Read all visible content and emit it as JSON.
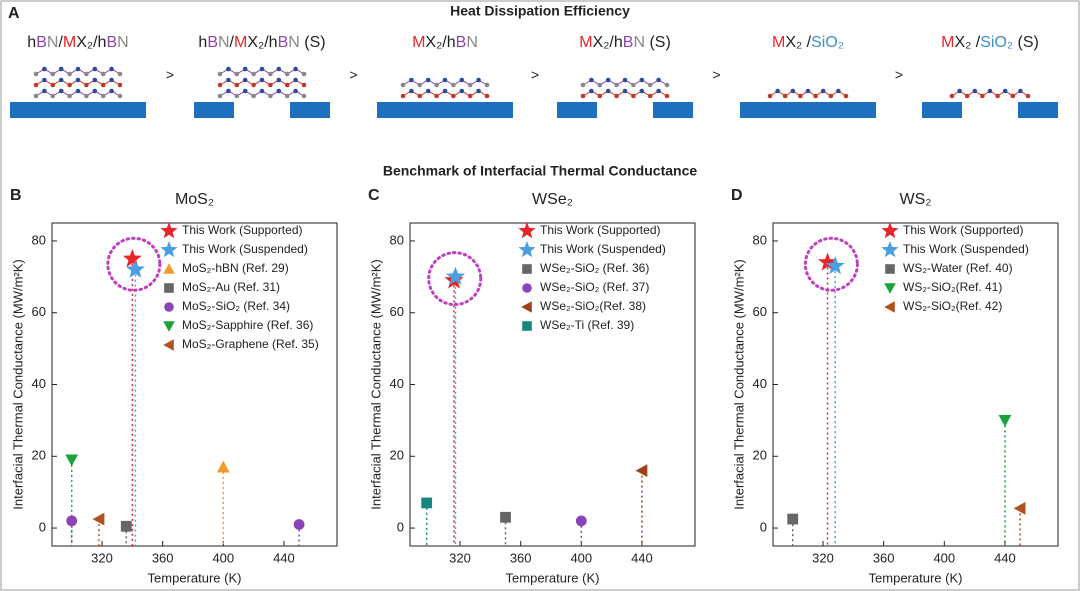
{
  "panel_a": {
    "letter": "A",
    "title": "Heat Dissipation Efficiency",
    "separator": ">",
    "structures": [
      {
        "label": [
          {
            "t": "h",
            "c": "#222"
          },
          {
            "t": "B",
            "c": "#8e44ad"
          },
          {
            "t": "N",
            "c": "#888"
          },
          {
            "t": "/",
            "c": "#222"
          },
          {
            "t": "M",
            "c": "#e8262a"
          },
          {
            "t": "X₂/h",
            "c": "#222"
          },
          {
            "t": "B",
            "c": "#8e44ad"
          },
          {
            "t": "N",
            "c": "#888"
          }
        ]
      },
      {
        "label": [
          {
            "t": "h",
            "c": "#222"
          },
          {
            "t": "B",
            "c": "#8e44ad"
          },
          {
            "t": "N",
            "c": "#888"
          },
          {
            "t": "/",
            "c": "#222"
          },
          {
            "t": "M",
            "c": "#e8262a"
          },
          {
            "t": "X₂/h",
            "c": "#222"
          },
          {
            "t": "B",
            "c": "#8e44ad"
          },
          {
            "t": "N",
            "c": "#888"
          },
          {
            "t": " (S)",
            "c": "#222"
          }
        ]
      },
      {
        "label": [
          {
            "t": "M",
            "c": "#e8262a"
          },
          {
            "t": "X₂/h",
            "c": "#222"
          },
          {
            "t": "B",
            "c": "#8e44ad"
          },
          {
            "t": "N",
            "c": "#888"
          }
        ]
      },
      {
        "label": [
          {
            "t": "M",
            "c": "#e8262a"
          },
          {
            "t": "X₂/h",
            "c": "#222"
          },
          {
            "t": "B",
            "c": "#8e44ad"
          },
          {
            "t": "N",
            "c": "#888"
          },
          {
            "t": " (S)",
            "c": "#222"
          }
        ]
      },
      {
        "label": [
          {
            "t": "M",
            "c": "#e8262a"
          },
          {
            "t": "X₂ /",
            "c": "#222"
          },
          {
            "t": "SiO₂",
            "c": "#3a8fd0"
          }
        ]
      },
      {
        "label": [
          {
            "t": "M",
            "c": "#e8262a"
          },
          {
            "t": "X₂ /",
            "c": "#222"
          },
          {
            "t": "SiO₂",
            "c": "#3a8fd0"
          },
          {
            "t": " (S)",
            "c": "#222"
          }
        ]
      }
    ]
  },
  "benchmark_title": "Benchmark of Interfacial Thermal Conductance",
  "chart_data": [
    {
      "type": "scatter",
      "letter": "B",
      "title": "MoS₂",
      "x_label": "Temperature (K)",
      "y_label": "Interfacial Thermal Conductance (MW/m²K)",
      "xlim": [
        287,
        475
      ],
      "xticks": [
        320,
        360,
        400,
        440
      ],
      "ylim": [
        -5,
        85
      ],
      "yticks": [
        0,
        20,
        40,
        60,
        80
      ],
      "series": [
        {
          "name": "This Work (Supported)",
          "color": "#e8262a",
          "marker": "star",
          "x": [
            340
          ],
          "values": [
            75
          ]
        },
        {
          "name": "This Work (Suspended)",
          "color": "#4a9fe0",
          "marker": "star",
          "x": [
            342
          ],
          "values": [
            72
          ]
        },
        {
          "name": "MoS₂-hBN (Ref. 29)",
          "color": "#f39a2b",
          "marker": "triangle-up",
          "x": [
            400
          ],
          "values": [
            17
          ]
        },
        {
          "name": "MoS₂-Au (Ref. 31)",
          "color": "#666666",
          "marker": "square",
          "x": [
            336
          ],
          "values": [
            0.5
          ]
        },
        {
          "name": "MoS₂-SiO₂ (Ref. 34)",
          "color": "#8a44b8",
          "marker": "circle",
          "x": [
            300,
            450
          ],
          "values": [
            2,
            1
          ]
        },
        {
          "name": "MoS₂-Sapphire (Ref. 36)",
          "color": "#1aa33c",
          "marker": "triangle-down",
          "x": [
            300
          ],
          "values": [
            19
          ]
        },
        {
          "name": "MoS₂-Graphene (Ref. 35)",
          "color": "#b0521f",
          "marker": "triangle-left",
          "x": [
            318
          ],
          "values": [
            2.5
          ]
        }
      ]
    },
    {
      "type": "scatter",
      "letter": "C",
      "title": "WSe₂",
      "x_label": "Temperature (K)",
      "y_label": "Interfacial Thermal Conductance (MW/m²K)",
      "xlim": [
        287,
        475
      ],
      "xticks": [
        320,
        360,
        400,
        440
      ],
      "ylim": [
        -5,
        85
      ],
      "yticks": [
        0,
        20,
        40,
        60,
        80
      ],
      "series": [
        {
          "name": "This Work (Supported)",
          "color": "#e8262a",
          "marker": "star",
          "x": [
            316
          ],
          "values": [
            69
          ]
        },
        {
          "name": "This Work (Suspended)",
          "color": "#4a9fe0",
          "marker": "star",
          "x": [
            317
          ],
          "values": [
            70
          ]
        },
        {
          "name": "WSe₂-SiO₂ (Ref. 36)",
          "color": "#666666",
          "marker": "square",
          "x": [
            350
          ],
          "values": [
            3
          ]
        },
        {
          "name": "WSe₂-SiO₂ (Ref. 37)",
          "color": "#8a44b8",
          "marker": "circle",
          "x": [
            400
          ],
          "values": [
            2
          ]
        },
        {
          "name": "WSe₂-SiO₂(Ref. 38)",
          "color": "#a0401a",
          "marker": "triangle-left",
          "x": [
            440
          ],
          "values": [
            16
          ]
        },
        {
          "name": "WSe₂-Ti (Ref. 39)",
          "color": "#17877d",
          "marker": "square",
          "x": [
            298
          ],
          "values": [
            7
          ]
        }
      ]
    },
    {
      "type": "scatter",
      "letter": "D",
      "title": "WS₂",
      "x_label": "Temperature (K)",
      "y_label": "Interfacial Thermal Conductance (MW/m²K)",
      "xlim": [
        287,
        475
      ],
      "xticks": [
        320,
        360,
        400,
        440
      ],
      "ylim": [
        -5,
        85
      ],
      "yticks": [
        0,
        20,
        40,
        60,
        80
      ],
      "series": [
        {
          "name": "This Work (Supported)",
          "color": "#e8262a",
          "marker": "star",
          "x": [
            323
          ],
          "values": [
            74
          ]
        },
        {
          "name": "This Work (Suspended)",
          "color": "#4a9fe0",
          "marker": "star",
          "x": [
            328
          ],
          "values": [
            73
          ]
        },
        {
          "name": "WS₂-Water (Ref. 40)",
          "color": "#666666",
          "marker": "square",
          "x": [
            300
          ],
          "values": [
            2.5
          ]
        },
        {
          "name": "WS₂-SiO₂(Ref. 41)",
          "color": "#1aa33c",
          "marker": "triangle-down",
          "x": [
            440
          ],
          "values": [
            30
          ]
        },
        {
          "name": "WS₂-SiO₂(Ref. 42)",
          "color": "#b0521f",
          "marker": "triangle-left",
          "x": [
            450
          ],
          "values": [
            5.5
          ]
        }
      ]
    }
  ]
}
